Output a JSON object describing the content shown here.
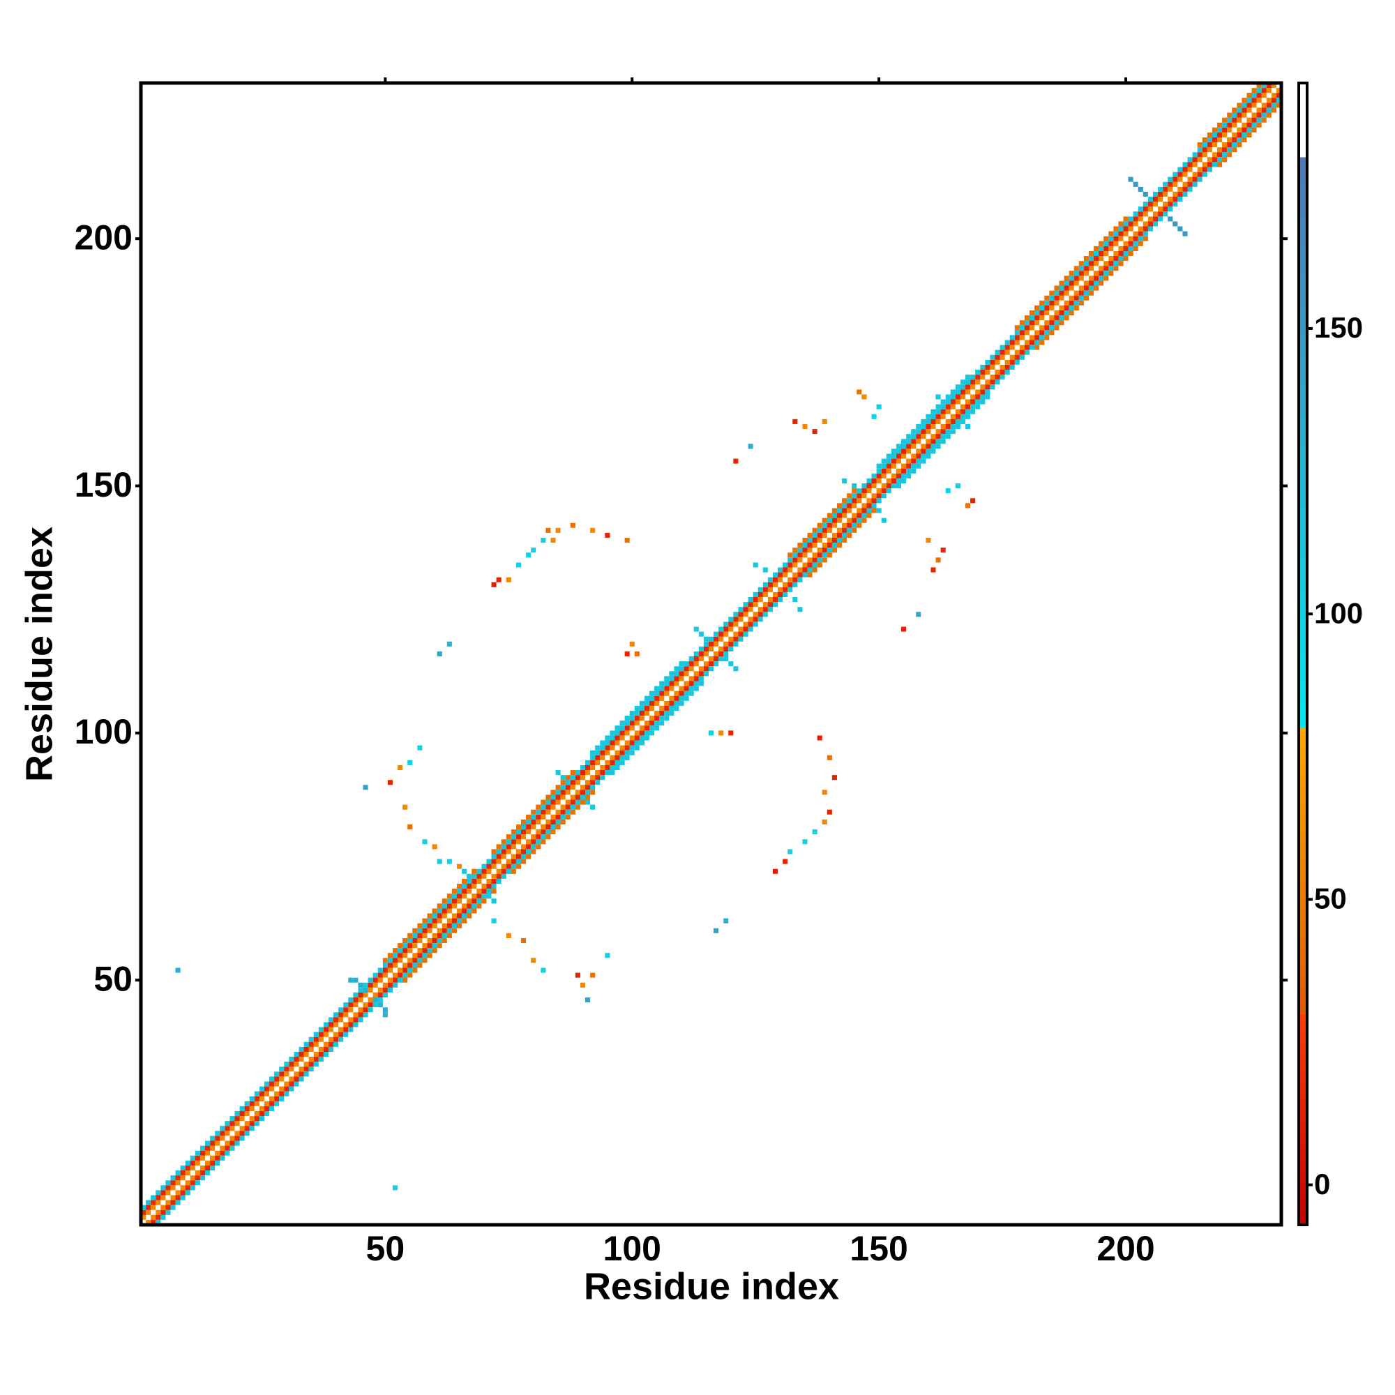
{
  "chart_data": {
    "type": "heatmap",
    "xlabel": "Residue index",
    "ylabel": "Residue index",
    "xlim": [
      0.5,
      231.5
    ],
    "ylim": [
      0.5,
      231.5
    ],
    "xticks": [
      50,
      100,
      150,
      200
    ],
    "yticks": [
      50,
      100,
      150,
      200
    ],
    "clim": [
      -7,
      193
    ],
    "cticks": [
      0,
      50,
      100,
      150
    ],
    "colorscale": [
      [
        -7,
        "#c40000",
        30,
        "#ff3c00"
      ],
      [
        30,
        "#e05a00",
        80,
        "#ffa500"
      ],
      [
        80,
        "#00e8f0",
        180,
        "#4f78b0"
      ],
      [
        180,
        "#ffffff",
        193,
        "#ffffff"
      ]
    ],
    "segments": {
      "x0": [
        1,
        2,
        1,
        3,
        1,
        4,
        50,
        54,
        72,
        76,
        92,
        96,
        132,
        136,
        150,
        154,
        178,
        182,
        215,
        219
      ],
      "x1": [
        230,
        231,
        229,
        231,
        228,
        231,
        68,
        72,
        88,
        92,
        110,
        114,
        145,
        149,
        168,
        172,
        200,
        204,
        227,
        231
      ],
      "dy": [
        1,
        -1,
        2,
        -2,
        3,
        -3,
        4,
        -4,
        4,
        -4,
        4,
        -4,
        4,
        -4,
        4,
        -4,
        4,
        -4,
        4,
        -4
      ],
      "values": [
        60,
        60,
        15,
        15,
        110,
        110,
        45,
        45,
        45,
        45,
        110,
        110,
        45,
        45,
        110,
        110,
        45,
        45,
        45,
        45
      ]
    },
    "cells": {
      "x": [
        8,
        52,
        53,
        55,
        57,
        51,
        46,
        54,
        55,
        58,
        60,
        61,
        63,
        65,
        80,
        82,
        78,
        75,
        72,
        89,
        90,
        92,
        95,
        91,
        72,
        73,
        75,
        77,
        79,
        80,
        82,
        84,
        83,
        85,
        88,
        92,
        95,
        99,
        129,
        131,
        132,
        135,
        137,
        139,
        140,
        139,
        141,
        140,
        138,
        100,
        99,
        101,
        61,
        63,
        116,
        118,
        120,
        117,
        119,
        121,
        124,
        133,
        135,
        137,
        139,
        146,
        147,
        149,
        150,
        155,
        158,
        161,
        162,
        163,
        160,
        168,
        169,
        164,
        166,
        44,
        45,
        46,
        48,
        49,
        50,
        43,
        50,
        85,
        86,
        87,
        90,
        91,
        92,
        66,
        67,
        71,
        72,
        113,
        114,
        115,
        119,
        120,
        121,
        125,
        127,
        133,
        134,
        143,
        145,
        150,
        151,
        162,
        168,
        201,
        202,
        203,
        204,
        209,
        210,
        211,
        212
      ],
      "y": [
        52,
        8,
        93,
        94,
        97,
        90,
        89,
        85,
        81,
        78,
        77,
        74,
        74,
        73,
        54,
        52,
        58,
        59,
        62,
        51,
        49,
        51,
        55,
        46,
        130,
        131,
        131,
        134,
        136,
        137,
        139,
        139,
        141,
        141,
        142,
        141,
        140,
        139,
        72,
        74,
        76,
        78,
        80,
        82,
        84,
        88,
        91,
        95,
        99,
        118,
        116,
        116,
        116,
        118,
        100,
        100,
        100,
        60,
        62,
        155,
        158,
        163,
        162,
        161,
        163,
        169,
        168,
        164,
        166,
        121,
        124,
        133,
        135,
        137,
        139,
        146,
        147,
        149,
        150,
        50,
        49,
        48,
        46,
        45,
        44,
        50,
        43,
        92,
        91,
        90,
        87,
        86,
        85,
        72,
        71,
        67,
        66,
        121,
        120,
        119,
        115,
        114,
        113,
        134,
        133,
        127,
        125,
        151,
        150,
        145,
        143,
        168,
        162,
        212,
        211,
        210,
        209,
        204,
        203,
        202,
        201
      ],
      "values": [
        130,
        100,
        60,
        100,
        100,
        15,
        140,
        60,
        45,
        100,
        60,
        100,
        100,
        60,
        60,
        100,
        45,
        60,
        100,
        15,
        60,
        45,
        100,
        140,
        10,
        15,
        60,
        100,
        100,
        100,
        100,
        60,
        45,
        60,
        45,
        60,
        15,
        45,
        10,
        15,
        100,
        100,
        100,
        60,
        15,
        60,
        15,
        45,
        15,
        60,
        15,
        45,
        140,
        130,
        100,
        60,
        15,
        140,
        130,
        15,
        130,
        15,
        60,
        15,
        60,
        45,
        60,
        100,
        100,
        15,
        140,
        15,
        45,
        15,
        60,
        45,
        15,
        100,
        100,
        130,
        130,
        130,
        130,
        130,
        130,
        130,
        130,
        110,
        110,
        110,
        110,
        110,
        110,
        110,
        110,
        110,
        110,
        110,
        110,
        110,
        110,
        110,
        110,
        110,
        110,
        110,
        110,
        110,
        110,
        110,
        110,
        110,
        110,
        150,
        150,
        150,
        150,
        150,
        150,
        150,
        150
      ]
    }
  }
}
